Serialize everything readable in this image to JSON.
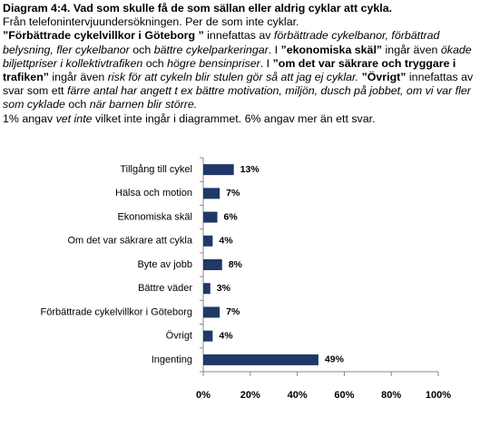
{
  "chart_data": {
    "type": "bar",
    "orientation": "horizontal",
    "title": "Diagram 4:4. Vad som skulle få de som sällan eller aldrig cyklar att cykla.",
    "subtitle": "Från telefonintervjuundersökningen. Per de som inte cyklar.",
    "notes": [
      "”Förbättrade cykelvillkor i Göteborg ”",
      "innefattas av",
      "förbättrade cykelbanor, förbättrad belysning, fler cykelbanor",
      "och",
      "bättre cykelparkeringar",
      ". I",
      "”ekonomiska skäl”",
      "ingår även",
      "ökade biljettpriser i kollektivtrafiken",
      "och",
      "högre bensinpriser",
      ". I",
      "”om det var säkrare och tryggare i trafiken”",
      "ingår även",
      "risk för att cykeln blir stulen gör så att jag ej cyklar.",
      "”Övrigt”",
      "innefattas av svar som ett",
      "färre antal har angett t ex bättre motivation, miljön, dusch på jobbet, om vi var fler som cyklade",
      "och",
      "när barnen blir större."
    ],
    "footnote": [
      "1% angav",
      "vet inte",
      "vilket inte ingår i diagrammet. 6% angav mer än ett svar."
    ],
    "categories": [
      "Tillgång till cykel",
      "Hälsa och motion",
      "Ekonomiska skäl",
      "Om det var säkrare att cykla",
      "Byte av jobb",
      "Bättre väder",
      "Förbättrade cykelvillkor i Göteborg",
      "Övrigt",
      "Ingenting"
    ],
    "values": [
      13,
      7,
      6,
      4,
      8,
      3,
      7,
      4,
      49
    ],
    "value_labels": [
      "13%",
      "7%",
      "6%",
      "4%",
      "8%",
      "3%",
      "7%",
      "4%",
      "49%"
    ],
    "color": "#1f3868",
    "xlim": [
      0,
      100
    ],
    "xticks": [
      {
        "value": 0,
        "label": "0%"
      },
      {
        "value": 20,
        "label": "20%"
      },
      {
        "value": 40,
        "label": "40%"
      },
      {
        "value": 60,
        "label": "60%"
      },
      {
        "value": 80,
        "label": "80%"
      },
      {
        "value": 100,
        "label": "100%"
      }
    ],
    "grid": false
  }
}
